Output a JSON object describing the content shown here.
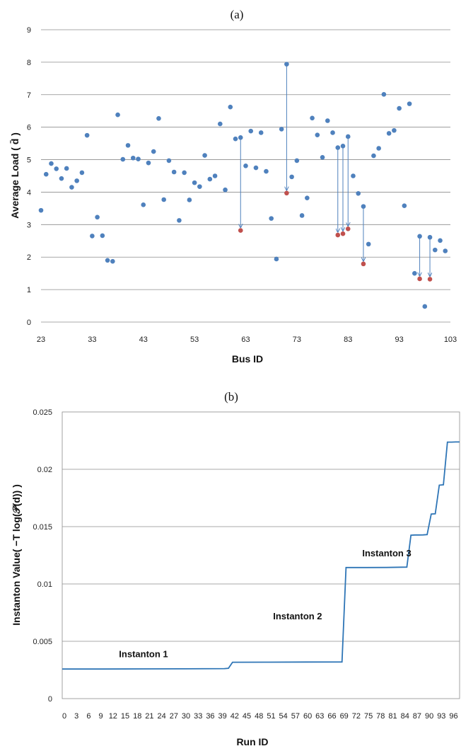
{
  "chart_data": [
    {
      "type": "scatter",
      "panel_label": "(a)",
      "xlabel": "Bus ID",
      "ylabel": "Average Load ( d̄ )",
      "xlim": [
        23,
        103
      ],
      "ylim": [
        0,
        9
      ],
      "x_ticks": [
        23,
        33,
        43,
        53,
        63,
        73,
        83,
        93,
        103
      ],
      "y_ticks": [
        0,
        1,
        2,
        3,
        4,
        5,
        6,
        7,
        8,
        9
      ],
      "grid": "horizontal",
      "colors": {
        "nominal": "#4F81BD",
        "instanton": "#C0504D",
        "arrow": "#4F81BD"
      },
      "series": [
        {
          "role": "nominal",
          "points": [
            [
              23,
              3.44
            ],
            [
              24,
              4.55
            ],
            [
              25,
              4.88
            ],
            [
              26,
              4.72
            ],
            [
              27,
              4.42
            ],
            [
              28,
              4.73
            ],
            [
              29,
              4.15
            ],
            [
              30,
              4.35
            ],
            [
              31,
              4.6
            ],
            [
              32,
              5.75
            ],
            [
              33,
              2.65
            ],
            [
              34,
              3.23
            ],
            [
              35,
              2.66
            ],
            [
              36,
              1.9
            ],
            [
              37,
              1.87
            ],
            [
              38,
              6.38
            ],
            [
              39,
              5.01
            ],
            [
              40,
              5.44
            ],
            [
              41,
              5.05
            ],
            [
              42,
              5.02
            ],
            [
              43,
              3.61
            ],
            [
              44,
              4.9
            ],
            [
              45,
              5.25
            ],
            [
              46,
              6.27
            ],
            [
              47,
              3.77
            ],
            [
              48,
              4.97
            ],
            [
              49,
              4.62
            ],
            [
              50,
              3.13
            ],
            [
              51,
              4.6
            ],
            [
              52,
              3.76
            ],
            [
              53,
              4.29
            ],
            [
              54,
              4.17
            ],
            [
              55,
              5.13
            ],
            [
              56,
              4.4
            ],
            [
              57,
              4.5
            ],
            [
              58,
              6.1
            ],
            [
              59,
              4.07
            ],
            [
              60,
              6.62
            ],
            [
              61,
              5.64
            ],
            [
              62,
              5.68
            ],
            [
              63,
              4.81
            ],
            [
              64,
              5.88
            ],
            [
              65,
              4.75
            ],
            [
              66,
              5.83
            ],
            [
              67,
              4.64
            ],
            [
              68,
              3.19
            ],
            [
              69,
              1.94
            ],
            [
              70,
              5.94
            ],
            [
              71,
              7.94
            ],
            [
              72,
              4.47
            ],
            [
              73,
              4.97
            ],
            [
              74,
              3.28
            ],
            [
              75,
              3.82
            ],
            [
              76,
              6.28
            ],
            [
              77,
              5.76
            ],
            [
              78,
              5.07
            ],
            [
              79,
              6.2
            ],
            [
              80,
              5.83
            ],
            [
              81,
              5.37
            ],
            [
              82,
              5.42
            ],
            [
              83,
              5.71
            ],
            [
              84,
              4.5
            ],
            [
              85,
              3.96
            ],
            [
              86,
              3.56
            ],
            [
              87,
              2.4
            ],
            [
              88,
              5.12
            ],
            [
              89,
              5.35
            ],
            [
              90,
              7.01
            ],
            [
              91,
              5.81
            ],
            [
              92,
              5.9
            ],
            [
              93,
              6.58
            ],
            [
              94,
              3.58
            ],
            [
              95,
              6.72
            ],
            [
              96,
              1.5
            ],
            [
              97,
              2.64
            ],
            [
              98,
              0.48
            ],
            [
              99,
              2.61
            ],
            [
              100,
              2.22
            ],
            [
              101,
              2.51
            ],
            [
              102,
              2.19
            ]
          ]
        },
        {
          "role": "instanton",
          "points": [
            [
              62,
              2.82
            ],
            [
              71,
              3.97
            ],
            [
              81,
              2.68
            ],
            [
              82,
              2.72
            ],
            [
              83,
              2.87
            ],
            [
              86,
              1.79
            ],
            [
              97,
              1.33
            ],
            [
              99,
              1.32
            ]
          ]
        }
      ],
      "arrows": [
        {
          "bus": 62,
          "from": 5.68,
          "to": 2.82
        },
        {
          "bus": 71,
          "from": 7.94,
          "to": 3.97
        },
        {
          "bus": 81,
          "from": 5.37,
          "to": 2.68
        },
        {
          "bus": 82,
          "from": 5.42,
          "to": 2.72
        },
        {
          "bus": 83,
          "from": 5.71,
          "to": 2.87
        },
        {
          "bus": 86,
          "from": 3.56,
          "to": 1.79
        },
        {
          "bus": 97,
          "from": 2.64,
          "to": 1.33
        },
        {
          "bus": 99,
          "from": 2.61,
          "to": 1.32
        }
      ]
    },
    {
      "type": "line",
      "panel_label": "(b)",
      "xlabel": "Run ID",
      "ylabel": "Instanton Value( −T log(𝒫(d)) )",
      "x_ticks": [
        0,
        3,
        6,
        9,
        12,
        15,
        18,
        21,
        24,
        27,
        30,
        33,
        36,
        39,
        42,
        45,
        48,
        51,
        54,
        57,
        60,
        63,
        66,
        69,
        72,
        75,
        78,
        81,
        84,
        87,
        90,
        93,
        96
      ],
      "x_tick_labels": [
        "0",
        "3",
        "6",
        "9",
        "12",
        "15",
        "18",
        "21",
        "24",
        "27",
        "30",
        "33",
        "36",
        "39",
        "42",
        "45",
        "48",
        "51",
        "54",
        "57",
        "60",
        "63",
        "66",
        "69",
        "72",
        "75",
        "78",
        "81",
        "84",
        "87",
        "90",
        "93",
        "96"
      ],
      "xlim": [
        0,
        98
      ],
      "y_ticks": [
        0,
        0.005,
        0.01,
        0.015,
        0.02,
        0.025
      ],
      "y_tick_labels": [
        "0",
        "0.005",
        "0.01",
        "0.015",
        "0.02",
        "0.025"
      ],
      "ylim": [
        0,
        0.025
      ],
      "grid": "horizontal",
      "color": "#2E75B6",
      "x": [
        0,
        10,
        20,
        30,
        40,
        41,
        42,
        50,
        60,
        69,
        70,
        75,
        80,
        85,
        86,
        87,
        88,
        89,
        90,
        91,
        92,
        93,
        94,
        95,
        96,
        97,
        98
      ],
      "values": [
        0.00258,
        0.00258,
        0.00259,
        0.0026,
        0.00262,
        0.00265,
        0.00317,
        0.00318,
        0.00319,
        0.0032,
        0.01143,
        0.01143,
        0.01144,
        0.01147,
        0.01425,
        0.01427,
        0.01427,
        0.01428,
        0.0143,
        0.0161,
        0.01612,
        0.01862,
        0.01865,
        0.02237,
        0.02237,
        0.02238,
        0.02238
      ],
      "annotations": [
        {
          "text": "Instanton 1",
          "x": 14,
          "y": 0.0036
        },
        {
          "text": "Instanton 2",
          "x": 52,
          "y": 0.0069
        },
        {
          "text": "Instanton 3",
          "x": 74,
          "y": 0.0124
        }
      ]
    }
  ]
}
